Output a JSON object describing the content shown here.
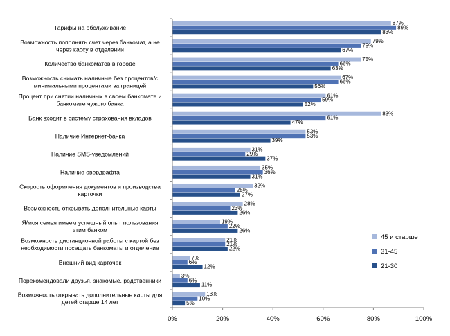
{
  "chart_data": {
    "type": "bar",
    "orientation": "horizontal",
    "xlim": [
      0,
      100
    ],
    "xticks": [
      "0%",
      "20%",
      "40%",
      "60%",
      "80%",
      "100%"
    ],
    "grid": false,
    "legend_position": "right",
    "categories": [
      [
        "Тарифы на обслуживание"
      ],
      [
        "Возможность пополнять счет через банкомат, а не",
        "через кассу в отделении"
      ],
      [
        "Количество банкоматов в городе"
      ],
      [
        "Возможность снимать наличные без процентов/с",
        "минимальными процентами за границей"
      ],
      [
        "Процент при снятии наличных в своем банкомате и",
        "банкомате чужого банка"
      ],
      [
        "Банк входит в систему страхования вкладов"
      ],
      [
        "Наличие Интернет-банка"
      ],
      [
        "Наличие SMS-уведомлений"
      ],
      [
        "Наличие овердрафта"
      ],
      [
        "Скорость оформления документов и производства",
        "карточки"
      ],
      [
        "Возможность открывать дополнительные карты"
      ],
      [
        "Я/моя семья имеем успешный опыт пользования",
        "этим банком"
      ],
      [
        "Возможность дистанционной работы с картой без",
        "необходимости посещать банкоматы и отделение"
      ],
      [
        "Внешний вид карточек"
      ],
      [
        "Порекомендовали друзья, знакомые, родственники"
      ],
      [
        "Возможность открывать дополнительные карты для",
        "детей старше 14 лет"
      ]
    ],
    "series": [
      {
        "name": "45 и старше",
        "color": "#a6b8dc",
        "values": [
          87,
          79,
          75,
          67,
          61,
          83,
          53,
          31,
          35,
          32,
          28,
          19,
          21,
          7,
          3,
          13
        ]
      },
      {
        "name": "31-45",
        "color": "#4f72b4",
        "values": [
          89,
          75,
          66,
          66,
          59,
          61,
          53,
          29,
          36,
          25,
          23,
          22,
          21,
          6,
          6,
          10
        ]
      },
      {
        "name": "21-30",
        "color": "#27508a",
        "values": [
          83,
          67,
          63,
          56,
          52,
          47,
          39,
          37,
          31,
          27,
          26,
          26,
          22,
          12,
          11,
          5
        ]
      }
    ]
  }
}
